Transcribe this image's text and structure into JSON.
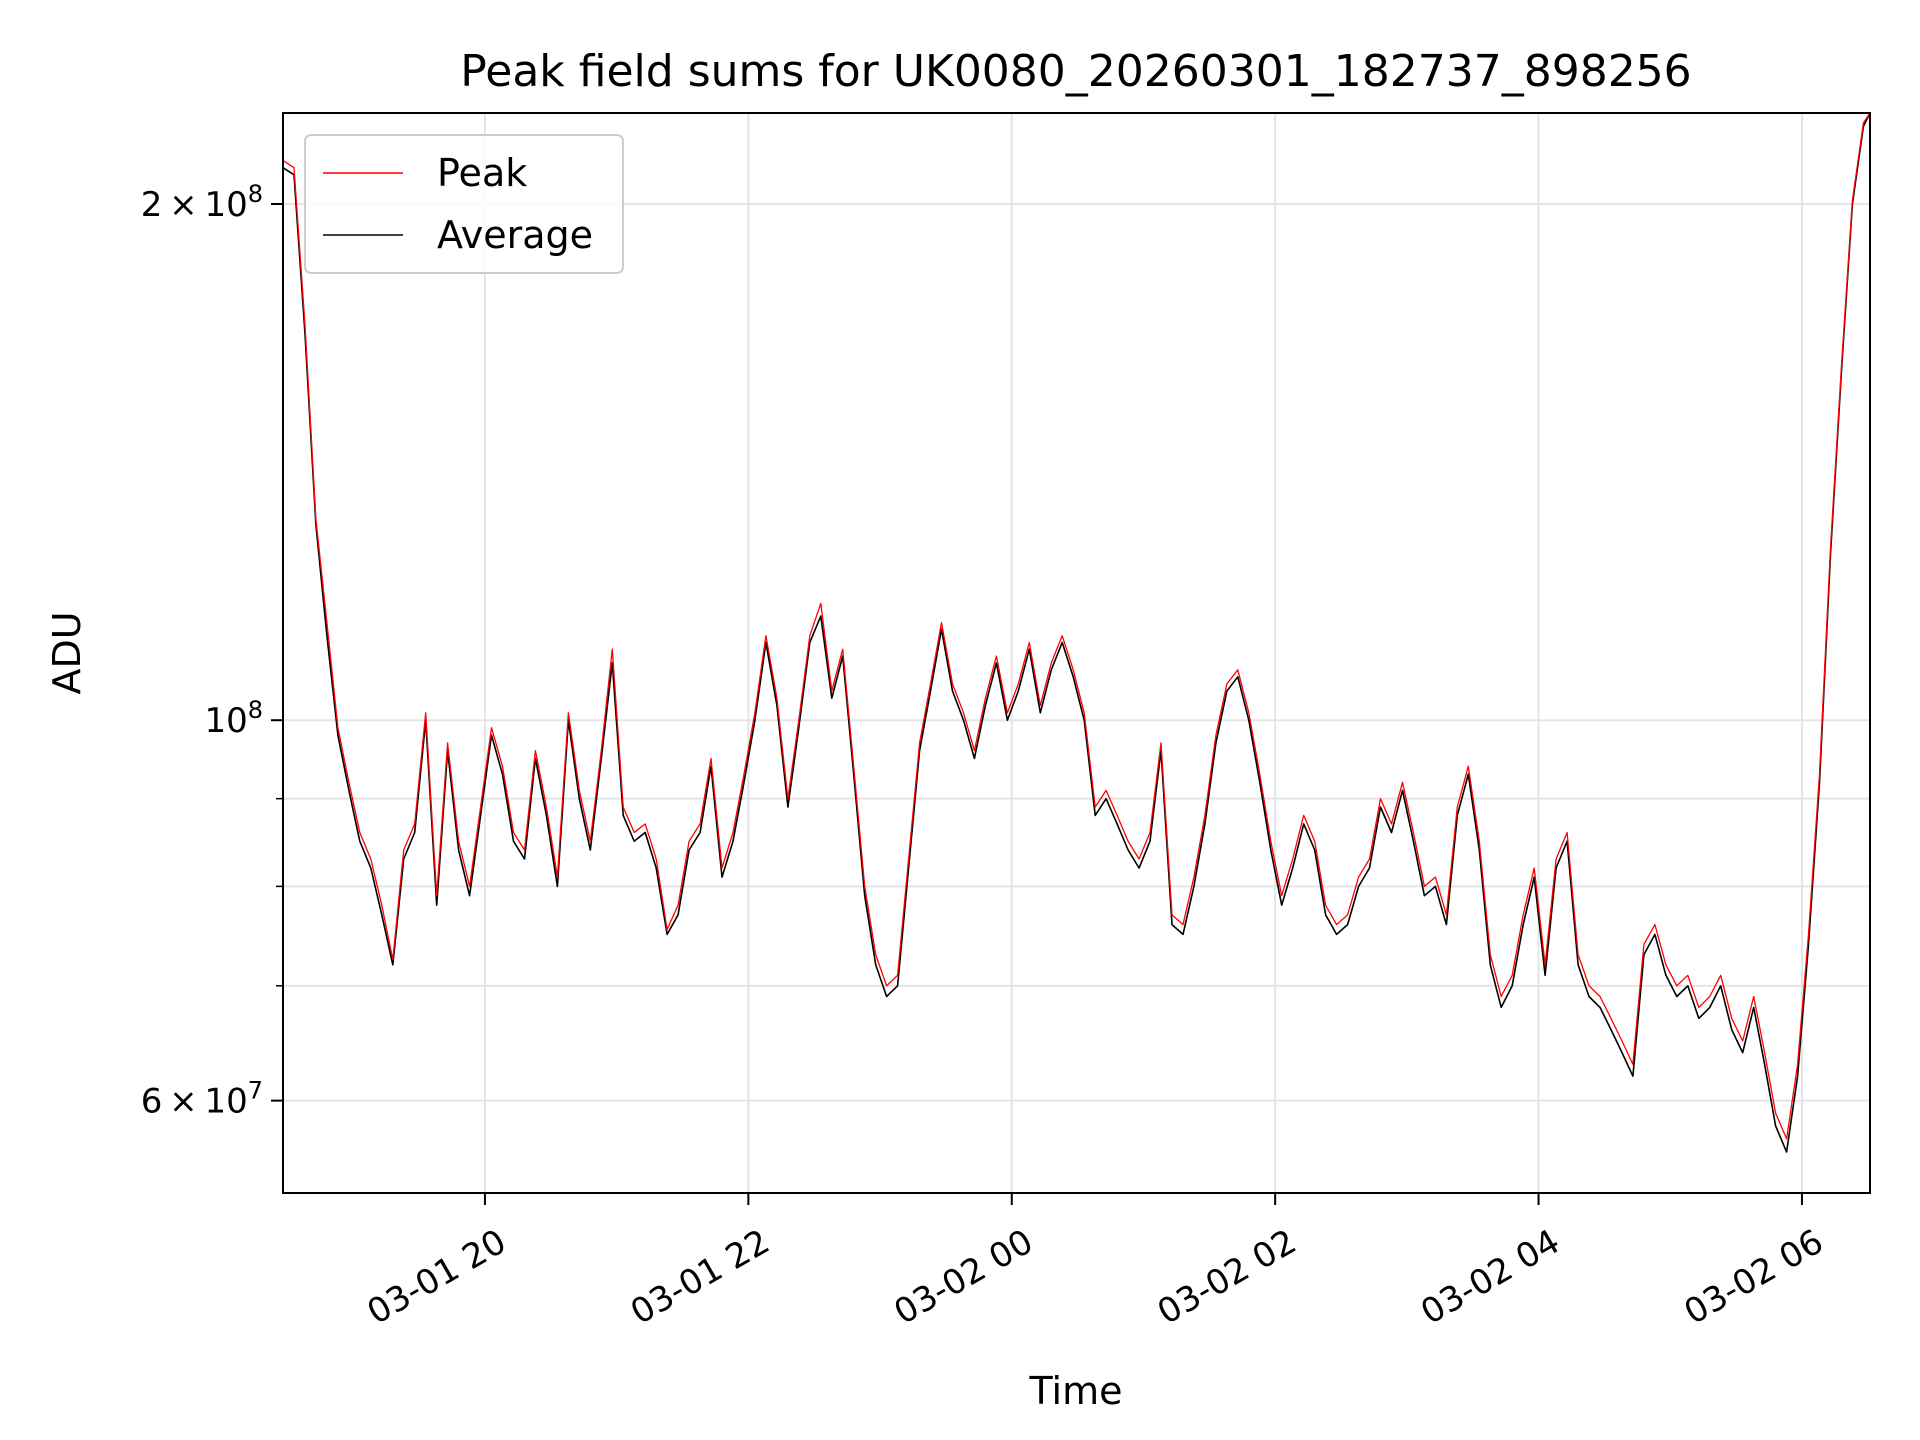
{
  "chart_data": {
    "type": "line",
    "title": "Peak field sums for UK0080_20260301_182737_898256",
    "xlabel": "Time",
    "ylabel": "ADU",
    "yscale": "log",
    "ylim": [
      53000000,
      226000000
    ],
    "xlim": [
      "2026-03-01 18:28",
      "2026-03-02 06:31"
    ],
    "grid": true,
    "legend": {
      "placement": "top-left",
      "entries": [
        "Peak",
        "Average"
      ]
    },
    "x_ticks": [
      "03-01 20",
      "03-01 22",
      "03-02 00",
      "03-02 02",
      "03-02 04",
      "03-02 06"
    ],
    "x_tick_times": [
      "2026-03-01 20:00",
      "2026-03-01 22:00",
      "2026-03-02 00:00",
      "2026-03-02 02:00",
      "2026-03-02 04:00",
      "2026-03-02 06:00"
    ],
    "y_ticks": [
      {
        "value": 60000000,
        "label_mant": "6",
        "label_exp": "7"
      },
      {
        "value": 100000000,
        "label_mant": "",
        "label_exp": "8"
      },
      {
        "value": 200000000,
        "label_mant": "2",
        "label_exp": "8"
      }
    ],
    "y_minor_ticks": [
      70000000,
      80000000,
      90000000
    ],
    "series": [
      {
        "name": "Average",
        "color": "#000000",
        "x": [
          "2026-03-01 18:28",
          "2026-03-01 18:33",
          "2026-03-01 18:38",
          "2026-03-01 18:43",
          "2026-03-01 18:48",
          "2026-03-01 18:53",
          "2026-03-01 18:58",
          "2026-03-01 19:03",
          "2026-03-01 19:08",
          "2026-03-01 19:13",
          "2026-03-01 19:18",
          "2026-03-01 19:23",
          "2026-03-01 19:28",
          "2026-03-01 19:33",
          "2026-03-01 19:38",
          "2026-03-01 19:43",
          "2026-03-01 19:48",
          "2026-03-01 19:53",
          "2026-03-01 19:58",
          "2026-03-01 20:03",
          "2026-03-01 20:08",
          "2026-03-01 20:13",
          "2026-03-01 20:18",
          "2026-03-01 20:23",
          "2026-03-01 20:28",
          "2026-03-01 20:33",
          "2026-03-01 20:38",
          "2026-03-01 20:43",
          "2026-03-01 20:48",
          "2026-03-01 20:53",
          "2026-03-01 20:58",
          "2026-03-01 21:03",
          "2026-03-01 21:08",
          "2026-03-01 21:13",
          "2026-03-01 21:18",
          "2026-03-01 21:23",
          "2026-03-01 21:28",
          "2026-03-01 21:33",
          "2026-03-01 21:38",
          "2026-03-01 21:43",
          "2026-03-01 21:48",
          "2026-03-01 21:53",
          "2026-03-01 21:58",
          "2026-03-01 22:03",
          "2026-03-01 22:08",
          "2026-03-01 22:13",
          "2026-03-01 22:18",
          "2026-03-01 22:23",
          "2026-03-01 22:28",
          "2026-03-01 22:33",
          "2026-03-01 22:38",
          "2026-03-01 22:43",
          "2026-03-01 22:48",
          "2026-03-01 22:53",
          "2026-03-01 22:58",
          "2026-03-01 23:03",
          "2026-03-01 23:08",
          "2026-03-01 23:13",
          "2026-03-01 23:18",
          "2026-03-01 23:23",
          "2026-03-01 23:28",
          "2026-03-01 23:33",
          "2026-03-01 23:38",
          "2026-03-01 23:43",
          "2026-03-01 23:48",
          "2026-03-01 23:53",
          "2026-03-01 23:58",
          "2026-03-02 00:03",
          "2026-03-02 00:08",
          "2026-03-02 00:13",
          "2026-03-02 00:18",
          "2026-03-02 00:23",
          "2026-03-02 00:28",
          "2026-03-02 00:33",
          "2026-03-02 00:38",
          "2026-03-02 00:43",
          "2026-03-02 00:48",
          "2026-03-02 00:53",
          "2026-03-02 00:58",
          "2026-03-02 01:03",
          "2026-03-02 01:08",
          "2026-03-02 01:13",
          "2026-03-02 01:18",
          "2026-03-02 01:23",
          "2026-03-02 01:28",
          "2026-03-02 01:33",
          "2026-03-02 01:38",
          "2026-03-02 01:43",
          "2026-03-02 01:48",
          "2026-03-02 01:53",
          "2026-03-02 01:58",
          "2026-03-02 02:03",
          "2026-03-02 02:08",
          "2026-03-02 02:13",
          "2026-03-02 02:18",
          "2026-03-02 02:23",
          "2026-03-02 02:28",
          "2026-03-02 02:33",
          "2026-03-02 02:38",
          "2026-03-02 02:43",
          "2026-03-02 02:48",
          "2026-03-02 02:53",
          "2026-03-02 02:58",
          "2026-03-02 03:03",
          "2026-03-02 03:08",
          "2026-03-02 03:13",
          "2026-03-02 03:18",
          "2026-03-02 03:23",
          "2026-03-02 03:28",
          "2026-03-02 03:33",
          "2026-03-02 03:38",
          "2026-03-02 03:43",
          "2026-03-02 03:48",
          "2026-03-02 03:53",
          "2026-03-02 03:58",
          "2026-03-02 04:03",
          "2026-03-02 04:08",
          "2026-03-02 04:13",
          "2026-03-02 04:18",
          "2026-03-02 04:23",
          "2026-03-02 04:28",
          "2026-03-02 04:33",
          "2026-03-02 04:38",
          "2026-03-02 04:43",
          "2026-03-02 04:48",
          "2026-03-02 04:53",
          "2026-03-02 04:58",
          "2026-03-02 05:03",
          "2026-03-02 05:08",
          "2026-03-02 05:13",
          "2026-03-02 05:18",
          "2026-03-02 05:23",
          "2026-03-02 05:28",
          "2026-03-02 05:33",
          "2026-03-02 05:38",
          "2026-03-02 05:43",
          "2026-03-02 05:48",
          "2026-03-02 05:53",
          "2026-03-02 05:58",
          "2026-03-02 06:03",
          "2026-03-02 06:08",
          "2026-03-02 06:13",
          "2026-03-02 06:18",
          "2026-03-02 06:23",
          "2026-03-02 06:28",
          "2026-03-02 06:31"
        ],
        "values": [
          210000000,
          208000000,
          168000000,
          130000000,
          112000000,
          98000000,
          91000000,
          85000000,
          82000000,
          77000000,
          72000000,
          83000000,
          86000000,
          100000000,
          78000000,
          96000000,
          84000000,
          79000000,
          88000000,
          98000000,
          93000000,
          85000000,
          83000000,
          95000000,
          88000000,
          80000000,
          100000000,
          90000000,
          84000000,
          95000000,
          108000000,
          88000000,
          85000000,
          86000000,
          82000000,
          75000000,
          77000000,
          84000000,
          86000000,
          94000000,
          81000000,
          85000000,
          92000000,
          100000000,
          111000000,
          102000000,
          89000000,
          99000000,
          111000000,
          115000000,
          103000000,
          109000000,
          93000000,
          79000000,
          72000000,
          69000000,
          70000000,
          82000000,
          96000000,
          104000000,
          113000000,
          104000000,
          100000000,
          95000000,
          102000000,
          108000000,
          100000000,
          104000000,
          110000000,
          101000000,
          107000000,
          111000000,
          106000000,
          100000000,
          88000000,
          90000000,
          87000000,
          84000000,
          82000000,
          85000000,
          96000000,
          76000000,
          75000000,
          80000000,
          87000000,
          97000000,
          104000000,
          106000000,
          100000000,
          92000000,
          84000000,
          78000000,
          82000000,
          87000000,
          84000000,
          77000000,
          75000000,
          76000000,
          80000000,
          82000000,
          89000000,
          86000000,
          91000000,
          85000000,
          79000000,
          80000000,
          76000000,
          88000000,
          93000000,
          84000000,
          72000000,
          68000000,
          70000000,
          76000000,
          81000000,
          71000000,
          82000000,
          85000000,
          72000000,
          69000000,
          68000000,
          66000000,
          64000000,
          62000000,
          73000000,
          75000000,
          71000000,
          69000000,
          70000000,
          67000000,
          68000000,
          70000000,
          66000000,
          64000000,
          68000000,
          63000000,
          58000000,
          56000000,
          62000000,
          74000000,
          92000000,
          125000000,
          160000000,
          200000000,
          222000000,
          226000000
        ]
      },
      {
        "name": "Peak",
        "color": "#ff0000",
        "x": [
          "2026-03-01 18:28",
          "2026-03-01 18:33",
          "2026-03-01 18:38",
          "2026-03-01 18:43",
          "2026-03-01 18:48",
          "2026-03-01 18:53",
          "2026-03-01 18:58",
          "2026-03-01 19:03",
          "2026-03-01 19:08",
          "2026-03-01 19:13",
          "2026-03-01 19:18",
          "2026-03-01 19:23",
          "2026-03-01 19:28",
          "2026-03-01 19:33",
          "2026-03-01 19:38",
          "2026-03-01 19:43",
          "2026-03-01 19:48",
          "2026-03-01 19:53",
          "2026-03-01 19:58",
          "2026-03-01 20:03",
          "2026-03-01 20:08",
          "2026-03-01 20:13",
          "2026-03-01 20:18",
          "2026-03-01 20:23",
          "2026-03-01 20:28",
          "2026-03-01 20:33",
          "2026-03-01 20:38",
          "2026-03-01 20:43",
          "2026-03-01 20:48",
          "2026-03-01 20:53",
          "2026-03-01 20:58",
          "2026-03-01 21:03",
          "2026-03-01 21:08",
          "2026-03-01 21:13",
          "2026-03-01 21:18",
          "2026-03-01 21:23",
          "2026-03-01 21:28",
          "2026-03-01 21:33",
          "2026-03-01 21:38",
          "2026-03-01 21:43",
          "2026-03-01 21:48",
          "2026-03-01 21:53",
          "2026-03-01 21:58",
          "2026-03-01 22:03",
          "2026-03-01 22:08",
          "2026-03-01 22:13",
          "2026-03-01 22:18",
          "2026-03-01 22:23",
          "2026-03-01 22:28",
          "2026-03-01 22:33",
          "2026-03-01 22:38",
          "2026-03-01 22:43",
          "2026-03-01 22:48",
          "2026-03-01 22:53",
          "2026-03-01 22:58",
          "2026-03-01 23:03",
          "2026-03-01 23:08",
          "2026-03-01 23:13",
          "2026-03-01 23:18",
          "2026-03-01 23:23",
          "2026-03-01 23:28",
          "2026-03-01 23:33",
          "2026-03-01 23:38",
          "2026-03-01 23:43",
          "2026-03-01 23:48",
          "2026-03-01 23:53",
          "2026-03-01 23:58",
          "2026-03-02 00:03",
          "2026-03-02 00:08",
          "2026-03-02 00:13",
          "2026-03-02 00:18",
          "2026-03-02 00:23",
          "2026-03-02 00:28",
          "2026-03-02 00:33",
          "2026-03-02 00:38",
          "2026-03-02 00:43",
          "2026-03-02 00:48",
          "2026-03-02 00:53",
          "2026-03-02 00:58",
          "2026-03-02 01:03",
          "2026-03-02 01:08",
          "2026-03-02 01:13",
          "2026-03-02 01:18",
          "2026-03-02 01:23",
          "2026-03-02 01:28",
          "2026-03-02 01:33",
          "2026-03-02 01:38",
          "2026-03-02 01:43",
          "2026-03-02 01:48",
          "2026-03-02 01:53",
          "2026-03-02 01:58",
          "2026-03-02 02:03",
          "2026-03-02 02:08",
          "2026-03-02 02:13",
          "2026-03-02 02:18",
          "2026-03-02 02:23",
          "2026-03-02 02:28",
          "2026-03-02 02:33",
          "2026-03-02 02:38",
          "2026-03-02 02:43",
          "2026-03-02 02:48",
          "2026-03-02 02:53",
          "2026-03-02 02:58",
          "2026-03-02 03:03",
          "2026-03-02 03:08",
          "2026-03-02 03:13",
          "2026-03-02 03:18",
          "2026-03-02 03:23",
          "2026-03-02 03:28",
          "2026-03-02 03:33",
          "2026-03-02 03:38",
          "2026-03-02 03:43",
          "2026-03-02 03:48",
          "2026-03-02 03:53",
          "2026-03-02 03:58",
          "2026-03-02 04:03",
          "2026-03-02 04:08",
          "2026-03-02 04:13",
          "2026-03-02 04:18",
          "2026-03-02 04:23",
          "2026-03-02 04:28",
          "2026-03-02 04:33",
          "2026-03-02 04:38",
          "2026-03-02 04:43",
          "2026-03-02 04:48",
          "2026-03-02 04:53",
          "2026-03-02 04:58",
          "2026-03-02 05:03",
          "2026-03-02 05:08",
          "2026-03-02 05:13",
          "2026-03-02 05:18",
          "2026-03-02 05:23",
          "2026-03-02 05:28",
          "2026-03-02 05:33",
          "2026-03-02 05:38",
          "2026-03-02 05:43",
          "2026-03-02 05:48",
          "2026-03-02 05:53",
          "2026-03-02 05:58",
          "2026-03-02 06:03",
          "2026-03-02 06:08",
          "2026-03-02 06:13",
          "2026-03-02 06:18",
          "2026-03-02 06:23",
          "2026-03-02 06:28",
          "2026-03-02 06:31"
        ],
        "values": [
          212000000,
          210000000,
          170000000,
          131000000,
          114000000,
          99000000,
          92000000,
          86000000,
          83000000,
          78000000,
          72500000,
          84000000,
          87000000,
          101000000,
          79000000,
          97000000,
          85000000,
          80000000,
          89000000,
          99000000,
          94000000,
          86000000,
          84000000,
          96000000,
          89000000,
          81000000,
          101000000,
          91000000,
          85000000,
          96000000,
          110000000,
          89000000,
          86000000,
          87000000,
          83000000,
          75500000,
          78000000,
          85000000,
          87000000,
          95000000,
          82000000,
          86000000,
          93000000,
          101000000,
          112000000,
          103000000,
          90000000,
          100000000,
          112000000,
          117000000,
          104000000,
          110000000,
          94000000,
          80000000,
          73000000,
          70000000,
          71000000,
          83000000,
          97000000,
          105000000,
          114000000,
          105000000,
          101000000,
          96000000,
          103000000,
          109000000,
          101000000,
          105000000,
          111000000,
          102000000,
          108000000,
          112000000,
          107000000,
          101000000,
          89000000,
          91000000,
          88000000,
          85000000,
          83000000,
          86000000,
          97000000,
          77000000,
          76000000,
          81000000,
          88000000,
          98000000,
          105000000,
          107000000,
          101000000,
          93000000,
          85000000,
          79000000,
          83000000,
          88000000,
          85000000,
          78000000,
          76000000,
          77000000,
          81000000,
          83000000,
          90000000,
          87000000,
          92000000,
          86000000,
          80000000,
          81000000,
          77000000,
          89000000,
          94000000,
          85000000,
          73000000,
          69000000,
          71000000,
          77000000,
          82000000,
          72000000,
          83000000,
          86000000,
          73000000,
          70000000,
          69000000,
          67000000,
          65000000,
          63000000,
          74000000,
          76000000,
          72000000,
          70000000,
          71000000,
          68000000,
          69000000,
          71000000,
          67000000,
          65000000,
          69000000,
          64000000,
          59000000,
          57000000,
          63000000,
          75000000,
          93000000,
          126000000,
          161000000,
          201000000,
          223000000,
          226000000
        ]
      }
    ]
  }
}
